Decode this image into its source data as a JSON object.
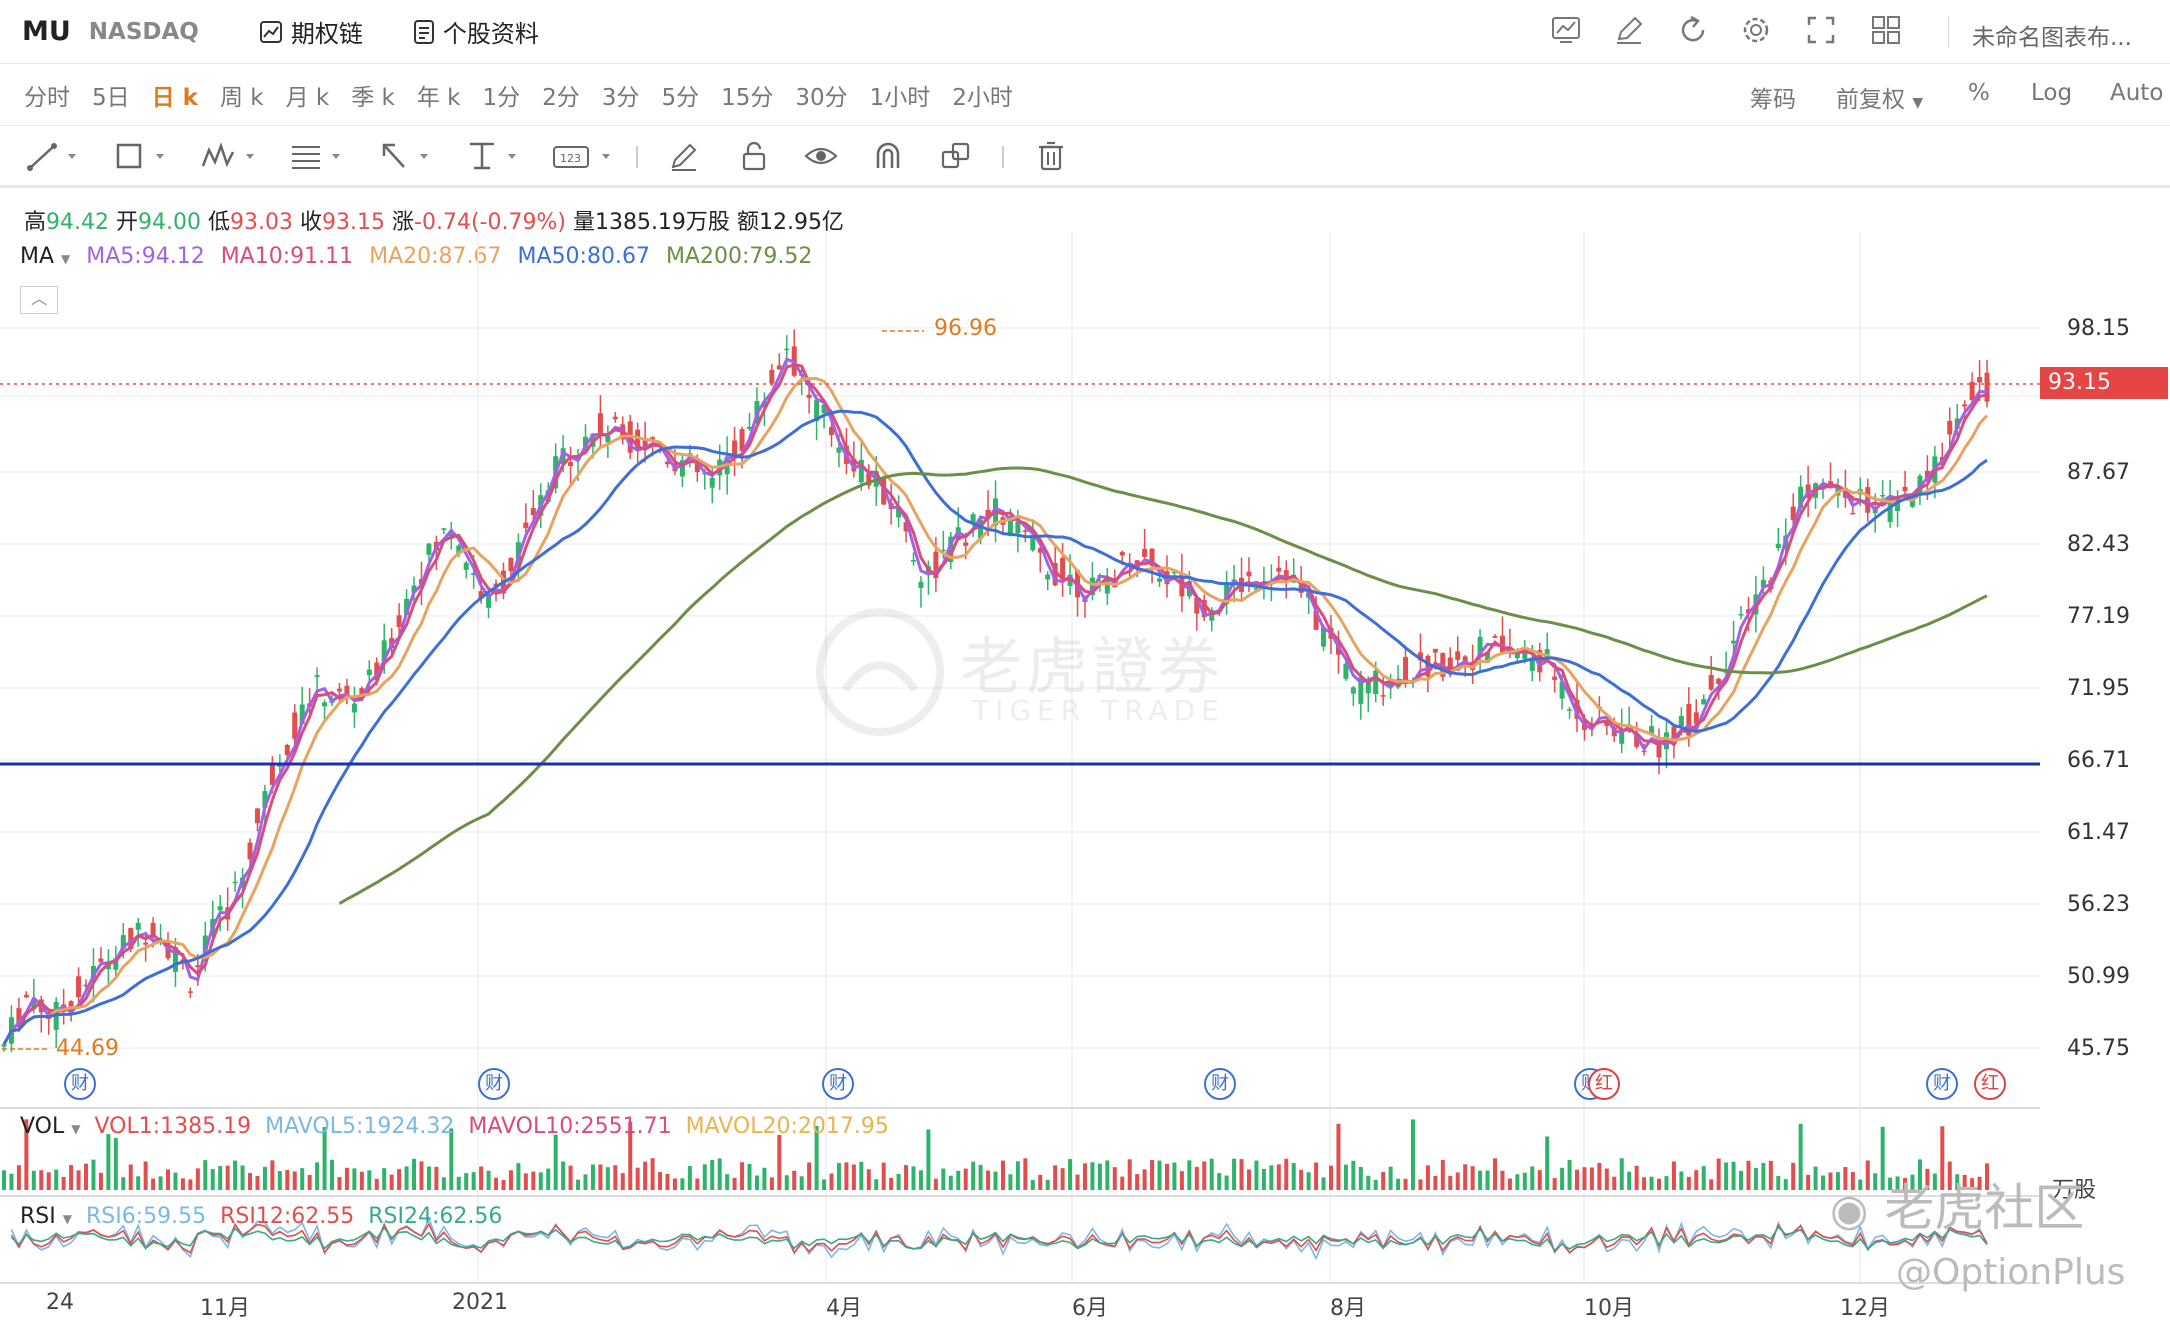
{
  "header": {
    "symbol": "MU",
    "exchange": "NASDAQ",
    "options_chain_label": "期权链",
    "profile_label": "个股资料",
    "layout_name": "未命名图表布..."
  },
  "periods": [
    "分时",
    "5日",
    "日 k",
    "周 k",
    "月 k",
    "季 k",
    "年 k",
    "1分",
    "2分",
    "3分",
    "5分",
    "15分",
    "30分",
    "1小时",
    "2小时"
  ],
  "active_period": "日 k",
  "right_options": {
    "chips": "筹码",
    "adjust": "前复权",
    "percent": "%",
    "log": "Log",
    "auto": "Auto"
  },
  "quote": {
    "high_label": "高",
    "high": "94.42",
    "open_label": "开",
    "open": "94.00",
    "low_label": "低",
    "low": "93.03",
    "close_label": "收",
    "close": "93.15",
    "change_label": "涨",
    "change": "-0.74(-0.79%)",
    "volume_label": "量",
    "volume": "1385.19万股",
    "amount_label": "额",
    "amount": "12.95亿"
  },
  "ma_legend": {
    "label": "MA",
    "items": [
      {
        "text": "MA5:94.12",
        "color": "#a062e6"
      },
      {
        "text": "MA10:91.11",
        "color": "#d94c7d"
      },
      {
        "text": "MA20:87.67",
        "color": "#e8a35e"
      },
      {
        "text": "MA50:80.67",
        "color": "#3d6fd8"
      },
      {
        "text": "MA200:79.52",
        "color": "#6c8e47"
      }
    ]
  },
  "price_axis": [
    "98.15",
    "93.15",
    "87.67",
    "82.43",
    "77.19",
    "71.95",
    "66.71",
    "61.47",
    "56.23",
    "50.99",
    "45.75"
  ],
  "current_price": "93.15",
  "annotations": {
    "high": "96.96",
    "low": "44.69"
  },
  "earnings_markers": [
    "财",
    "财",
    "财",
    "财",
    "财",
    "红",
    "财",
    "红"
  ],
  "volume_legend": {
    "label": "VOL",
    "items": [
      {
        "text": "VOL1:1385.19",
        "color": "#e24d4d"
      },
      {
        "text": "MAVOL5:1924.32",
        "color": "#7ab8e6"
      },
      {
        "text": "MAVOL10:2551.71",
        "color": "#d94c7d"
      },
      {
        "text": "MAVOL20:2017.95",
        "color": "#e8b44e"
      }
    ],
    "unit": "万股"
  },
  "rsi_legend": {
    "label": "RSI",
    "items": [
      {
        "text": "RSI6:59.55",
        "color": "#7ab8e6"
      },
      {
        "text": "RSI12:62.55",
        "color": "#e24d4d"
      },
      {
        "text": "RSI24:62.56",
        "color": "#3aa88a"
      }
    ]
  },
  "x_axis": [
    "24",
    "11月",
    "2021",
    "4月",
    "6月",
    "8月",
    "10月",
    "12月"
  ],
  "watermark": {
    "brand_cn": "老虎證券",
    "brand_en": "TIGER TRADE",
    "community": "老虎社区",
    "handle": "@OptionPlus"
  },
  "colors": {
    "up": "#2fb36a",
    "down": "#e24d4d",
    "accent": "#e07a1f",
    "support_line": "#1a2fb5"
  }
}
